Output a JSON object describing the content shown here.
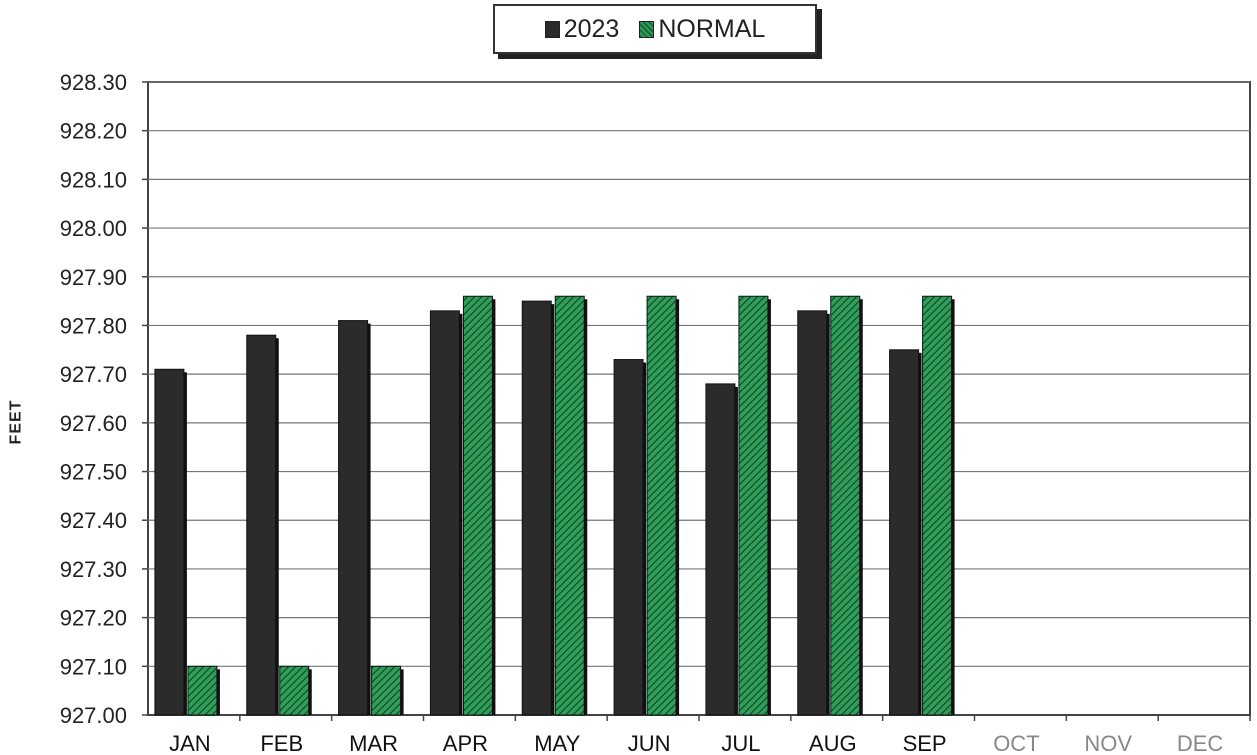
{
  "legend": {
    "series_2023": "2023",
    "series_normal": "NORMAL"
  },
  "chart_data": {
    "type": "bar",
    "ylabel": "FEET",
    "ylim": [
      927.0,
      928.3
    ],
    "y_ticks": [
      "928.30",
      "928.20",
      "928.10",
      "928.00",
      "927.90",
      "927.80",
      "927.70",
      "927.60",
      "927.50",
      "927.40",
      "927.30",
      "927.20",
      "927.10",
      "927.00"
    ],
    "categories": [
      "JAN",
      "FEB",
      "MAR",
      "APR",
      "MAY",
      "JUN",
      "JUL",
      "AUG",
      "SEP",
      "OCT",
      "NOV",
      "DEC"
    ],
    "series": [
      {
        "name": "2023",
        "color": "#2b2b2b",
        "values": [
          927.71,
          927.78,
          927.81,
          927.83,
          927.85,
          927.73,
          927.68,
          927.83,
          927.75,
          null,
          null,
          null
        ]
      },
      {
        "name": "NORMAL",
        "color": "#2e9e5a",
        "values": [
          927.1,
          927.1,
          927.1,
          927.86,
          927.86,
          927.86,
          927.86,
          927.86,
          927.86,
          null,
          null,
          null
        ]
      }
    ],
    "grid": true,
    "legend_position": "top-center",
    "active_label_color": "#111111",
    "inactive_label_color": "#888888"
  }
}
